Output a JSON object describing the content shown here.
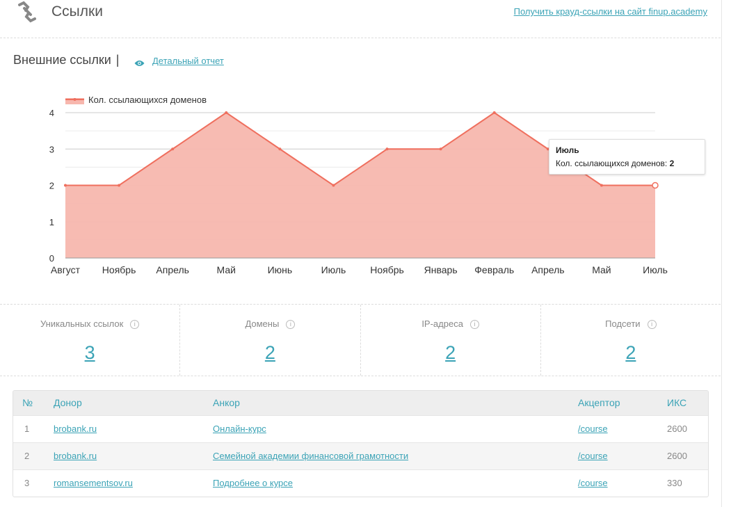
{
  "header": {
    "title": "Ссылки",
    "crowd_link": "Получить крауд-ссылки на сайт finup.academy"
  },
  "section": {
    "title": "Внешние ссылки",
    "separator": "|",
    "detail_link": "Детальный отчет"
  },
  "chart_data": {
    "type": "area",
    "legend": "Кол. ссылающихся доменов",
    "categories": [
      "Август",
      "Ноябрь",
      "Апрель",
      "Май",
      "Июнь",
      "Июль",
      "Ноябрь",
      "Январь",
      "Февраль",
      "Апрель",
      "Май",
      "Июль"
    ],
    "series": [
      {
        "name": "Кол. ссылающихся доменов",
        "values": [
          2,
          2,
          3,
          4,
          3,
          2,
          3,
          3,
          4,
          3,
          2,
          2
        ]
      }
    ],
    "ylim": [
      0,
      4
    ],
    "yticks": [
      "0",
      "1",
      "2",
      "3",
      "4"
    ],
    "grid": true,
    "legend_position": "top-left",
    "colors": {
      "fill": "#f7b7ae",
      "line": "#ef6f5e"
    }
  },
  "tooltip": {
    "title": "Июль",
    "label": "Кол. ссылающихся доменов: ",
    "value": "2"
  },
  "stats": [
    {
      "label": "Уникальных ссылок",
      "value": "3"
    },
    {
      "label": "Домены",
      "value": "2"
    },
    {
      "label": "IP-адреса",
      "value": "2"
    },
    {
      "label": "Подсети",
      "value": "2"
    }
  ],
  "table": {
    "headers": [
      "№",
      "Донор",
      "Анкор",
      "Акцептор",
      "ИКС"
    ],
    "rows": [
      {
        "num": "1",
        "donor": "brobank.ru",
        "anchor": "Онлайн-курс",
        "acceptor": "/course",
        "iks": "2600"
      },
      {
        "num": "2",
        "donor": "brobank.ru",
        "anchor": "Семейной академии финансовой грамотности",
        "acceptor": "/course",
        "iks": "2600"
      },
      {
        "num": "3",
        "donor": "romansementsov.ru",
        "anchor": "Подробнее о курсе",
        "acceptor": "/course",
        "iks": "330"
      }
    ]
  },
  "icons": {
    "header": "link-icon",
    "detail": "eye-icon",
    "info": "info-icon"
  },
  "colors": {
    "accent": "#3ba3b6",
    "info_glyph": "i"
  }
}
